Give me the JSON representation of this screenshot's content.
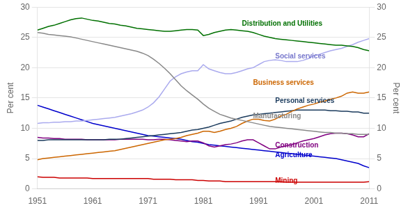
{
  "chart_data": {
    "type": "line",
    "x": [
      1951,
      1952,
      1953,
      1954,
      1955,
      1956,
      1957,
      1958,
      1959,
      1960,
      1961,
      1962,
      1963,
      1964,
      1965,
      1966,
      1967,
      1968,
      1969,
      1970,
      1971,
      1972,
      1973,
      1974,
      1975,
      1976,
      1977,
      1978,
      1979,
      1980,
      1981,
      1982,
      1983,
      1984,
      1985,
      1986,
      1987,
      1988,
      1989,
      1990,
      1991,
      1992,
      1993,
      1994,
      1995,
      1996,
      1997,
      1998,
      1999,
      2000,
      2001,
      2002,
      2003,
      2004,
      2005,
      2006,
      2007,
      2008,
      2009,
      2010,
      2011
    ],
    "xlim": [
      1951,
      2011
    ],
    "xticks": [
      1951,
      1961,
      1971,
      1981,
      1991,
      2001,
      2011
    ],
    "ylim": [
      0,
      30
    ],
    "yticks": [
      0,
      5,
      10,
      15,
      20,
      25,
      30
    ],
    "y2lim": [
      0,
      30
    ],
    "y2ticks": [
      0,
      5,
      10,
      15,
      20,
      25,
      30
    ],
    "ylabel": "Per cent",
    "y2label": "Per cent",
    "grid": "y",
    "series": [
      {
        "name": "Distribution and Utilities",
        "color": "#007000",
        "values": [
          26.2,
          26.5,
          26.8,
          27.0,
          27.3,
          27.6,
          27.9,
          28.1,
          28.2,
          28.0,
          27.8,
          27.7,
          27.5,
          27.3,
          27.2,
          27.0,
          26.9,
          26.7,
          26.5,
          26.4,
          26.3,
          26.2,
          26.1,
          26.0,
          26.0,
          26.1,
          26.2,
          26.3,
          26.3,
          26.2,
          25.3,
          25.5,
          25.8,
          26.0,
          26.2,
          26.3,
          26.2,
          26.1,
          26.0,
          25.8,
          25.5,
          25.2,
          25.0,
          24.8,
          24.7,
          24.6,
          24.5,
          24.4,
          24.3,
          24.2,
          24.1,
          24.0,
          23.9,
          23.8,
          23.7,
          23.7,
          23.6,
          23.5,
          23.3,
          23.0,
          22.8
        ]
      },
      {
        "name": "Manufacturing",
        "color": "#888888",
        "values": [
          25.8,
          25.7,
          25.5,
          25.4,
          25.3,
          25.2,
          25.1,
          24.9,
          24.7,
          24.5,
          24.3,
          24.1,
          23.9,
          23.7,
          23.5,
          23.3,
          23.1,
          22.9,
          22.7,
          22.4,
          22.0,
          21.4,
          20.7,
          19.9,
          19.0,
          18.0,
          17.0,
          16.2,
          15.5,
          14.8,
          14.0,
          13.3,
          12.8,
          12.3,
          12.0,
          11.7,
          11.5,
          11.3,
          11.1,
          10.9,
          10.7,
          10.5,
          10.3,
          10.2,
          10.1,
          10.0,
          9.9,
          9.8,
          9.7,
          9.6,
          9.5,
          9.4,
          9.3,
          9.3,
          9.2,
          9.2,
          9.1,
          9.1,
          9.0,
          9.0,
          9.0
        ]
      },
      {
        "name": "Social services",
        "color": "#aaaaee",
        "values": [
          10.8,
          10.9,
          10.9,
          11.0,
          11.0,
          11.1,
          11.1,
          11.2,
          11.2,
          11.3,
          11.4,
          11.5,
          11.6,
          11.7,
          11.8,
          12.0,
          12.2,
          12.4,
          12.7,
          13.0,
          13.5,
          14.2,
          15.2,
          16.5,
          17.8,
          18.5,
          19.0,
          19.3,
          19.5,
          19.5,
          20.5,
          19.8,
          19.5,
          19.2,
          19.0,
          19.0,
          19.2,
          19.5,
          19.8,
          20.0,
          20.5,
          21.0,
          21.2,
          21.3,
          21.2,
          21.0,
          21.0,
          21.0,
          21.2,
          21.5,
          22.0,
          22.2,
          22.5,
          22.8,
          23.0,
          23.2,
          23.5,
          23.8,
          24.2,
          24.5,
          24.8
        ]
      },
      {
        "name": "Business services",
        "color": "#cc6600",
        "values": [
          4.8,
          5.0,
          5.1,
          5.2,
          5.3,
          5.4,
          5.5,
          5.6,
          5.7,
          5.8,
          5.9,
          6.0,
          6.1,
          6.2,
          6.3,
          6.5,
          6.7,
          6.9,
          7.1,
          7.3,
          7.5,
          7.7,
          7.9,
          8.1,
          8.2,
          8.3,
          8.5,
          8.8,
          9.0,
          9.2,
          9.5,
          9.5,
          9.3,
          9.5,
          9.8,
          10.0,
          10.3,
          10.8,
          11.2,
          11.5,
          11.5,
          11.3,
          11.2,
          11.5,
          12.0,
          12.3,
          12.8,
          13.2,
          13.5,
          13.8,
          14.0,
          14.3,
          14.5,
          14.8,
          15.0,
          15.3,
          15.8,
          16.0,
          15.8,
          15.8,
          16.0
        ]
      },
      {
        "name": "Personal services",
        "color": "#1a3a5c",
        "values": [
          8.0,
          8.0,
          8.1,
          8.1,
          8.1,
          8.1,
          8.1,
          8.1,
          8.1,
          8.1,
          8.1,
          8.1,
          8.1,
          8.2,
          8.2,
          8.2,
          8.3,
          8.4,
          8.5,
          8.6,
          8.7,
          8.8,
          8.9,
          9.0,
          9.1,
          9.2,
          9.3,
          9.5,
          9.7,
          9.8,
          10.0,
          10.2,
          10.5,
          10.8,
          11.0,
          11.2,
          11.5,
          11.8,
          12.0,
          12.2,
          12.3,
          12.4,
          12.5,
          12.6,
          12.7,
          12.8,
          12.9,
          13.0,
          13.0,
          13.0,
          13.0,
          13.0,
          13.0,
          12.9,
          12.9,
          12.8,
          12.8,
          12.7,
          12.7,
          12.5,
          12.5
        ]
      },
      {
        "name": "Construction",
        "color": "#800080",
        "values": [
          8.5,
          8.4,
          8.4,
          8.3,
          8.3,
          8.2,
          8.2,
          8.2,
          8.2,
          8.1,
          8.1,
          8.1,
          8.1,
          8.1,
          8.1,
          8.2,
          8.2,
          8.2,
          8.2,
          8.2,
          8.1,
          8.1,
          8.2,
          8.2,
          8.1,
          8.0,
          7.9,
          7.8,
          7.9,
          7.9,
          7.6,
          7.1,
          6.9,
          7.1,
          7.3,
          7.4,
          7.6,
          7.9,
          8.1,
          8.1,
          7.6,
          7.1,
          6.6,
          6.6,
          6.9,
          7.1,
          7.3,
          7.6,
          7.9,
          8.1,
          8.3,
          8.6,
          8.9,
          9.1,
          9.2,
          9.2,
          9.1,
          8.9,
          8.6,
          8.6,
          9.1
        ]
      },
      {
        "name": "Agriculture",
        "color": "#0000cc",
        "values": [
          13.8,
          13.5,
          13.2,
          12.9,
          12.6,
          12.3,
          12.0,
          11.7,
          11.4,
          11.1,
          10.8,
          10.6,
          10.4,
          10.2,
          10.0,
          9.8,
          9.6,
          9.4,
          9.2,
          9.0,
          8.8,
          8.7,
          8.6,
          8.5,
          8.4,
          8.3,
          8.2,
          8.0,
          7.8,
          7.7,
          7.5,
          7.3,
          7.2,
          7.1,
          7.0,
          6.9,
          6.8,
          6.7,
          6.6,
          6.5,
          6.4,
          6.3,
          6.2,
          6.1,
          6.0,
          5.9,
          5.8,
          5.7,
          5.6,
          5.5,
          5.4,
          5.3,
          5.2,
          5.1,
          5.0,
          4.8,
          4.6,
          4.4,
          4.2,
          3.8,
          3.5
        ]
      },
      {
        "name": "Mining",
        "color": "#cc0000",
        "values": [
          2.0,
          1.9,
          1.9,
          1.9,
          1.8,
          1.8,
          1.8,
          1.8,
          1.8,
          1.8,
          1.7,
          1.7,
          1.7,
          1.7,
          1.7,
          1.7,
          1.7,
          1.7,
          1.7,
          1.7,
          1.7,
          1.6,
          1.6,
          1.6,
          1.6,
          1.5,
          1.5,
          1.5,
          1.5,
          1.4,
          1.4,
          1.3,
          1.3,
          1.3,
          1.2,
          1.2,
          1.2,
          1.2,
          1.2,
          1.2,
          1.2,
          1.2,
          1.2,
          1.2,
          1.2,
          1.1,
          1.1,
          1.1,
          1.1,
          1.1,
          1.1,
          1.1,
          1.1,
          1.1,
          1.1,
          1.1,
          1.1,
          1.1,
          1.1,
          1.1,
          1.2
        ]
      }
    ],
    "annotations": [
      {
        "text": "Distribution and Utilities",
        "x": 1988,
        "y": 27.2,
        "color": "#007000"
      },
      {
        "text": "Social services",
        "x": 1994,
        "y": 21.8,
        "color": "#7777cc"
      },
      {
        "text": "Business services",
        "x": 1990,
        "y": 17.5,
        "color": "#cc6600"
      },
      {
        "text": "Personal services",
        "x": 1994,
        "y": 14.5,
        "color": "#1a3a5c"
      },
      {
        "text": "Manufacturing",
        "x": 1990,
        "y": 12.0,
        "color": "#888888"
      },
      {
        "text": "Construction",
        "x": 1994,
        "y": 7.2,
        "color": "#800080"
      },
      {
        "text": "Agriculture",
        "x": 1994,
        "y": 5.5,
        "color": "#0000cc"
      },
      {
        "text": "Mining",
        "x": 1994,
        "y": 1.3,
        "color": "#cc0000"
      }
    ]
  }
}
